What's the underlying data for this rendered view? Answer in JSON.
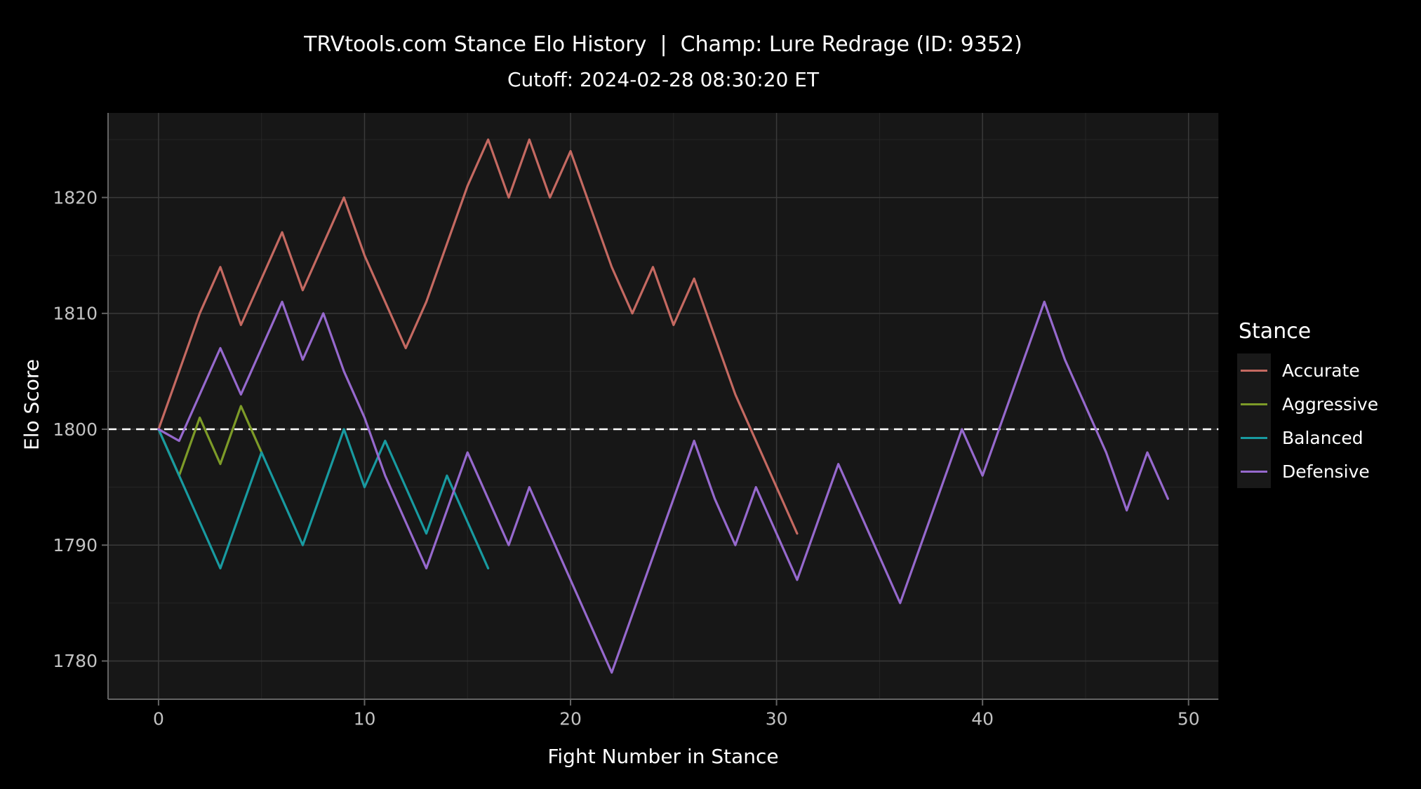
{
  "header": {
    "title": "TRVtools.com Stance Elo History  |  Champ: Lure Redrage (ID: 9352)",
    "subtitle": "Cutoff: 2024-02-28 08:30:20 ET"
  },
  "axes": {
    "x_label": "Fight Number in Stance",
    "y_label": "Elo Score"
  },
  "legend": {
    "title": "Stance",
    "entries": [
      {
        "label": "Accurate",
        "color": "#C46961"
      },
      {
        "label": "Aggressive",
        "color": "#7D9B28"
      },
      {
        "label": "Balanced",
        "color": "#189AA0"
      },
      {
        "label": "Defensive",
        "color": "#9669CD"
      }
    ]
  },
  "colors": {
    "background": "#000000",
    "panel": "#171717",
    "grid_major": "#3A3A3A",
    "grid_minor": "#262626",
    "axis_line": "#646464",
    "tick_label": "#C2C2C2",
    "text": "#FFFFFF",
    "reference_line": "#FFFFFF",
    "legend_key_bg": "#191919"
  },
  "chart_data": {
    "type": "line",
    "title": "TRVtools.com Stance Elo History | Champ: Lure Redrage (ID: 9352)",
    "subtitle": "Cutoff: 2024-02-28 08:30:20 ET",
    "xlabel": "Fight Number in Stance",
    "ylabel": "Elo Score",
    "xlim": [
      -2.45,
      51.45
    ],
    "ylim": [
      1776.7,
      1827.3
    ],
    "x_ticks": [
      0,
      10,
      20,
      30,
      40,
      50
    ],
    "x_minor_ticks": [
      5,
      15,
      25,
      35,
      45
    ],
    "y_ticks": [
      1780,
      1790,
      1800,
      1810,
      1820
    ],
    "y_minor_ticks": [
      1785,
      1795,
      1805,
      1815,
      1825
    ],
    "reference_line_y": 1800,
    "grid": true,
    "legend_position": "right",
    "legend_title": "Stance",
    "series": [
      {
        "name": "Accurate",
        "color": "#C46961",
        "x_start": 0,
        "values": [
          1800,
          1805,
          1810,
          1814,
          1809,
          1813,
          1817,
          1812,
          1816,
          1820,
          1815,
          1811,
          1807,
          1811,
          1816,
          1821,
          1825,
          1820,
          1825,
          1820,
          1824,
          1819,
          1814,
          1810,
          1814,
          1809,
          1813,
          1808,
          1803,
          1799,
          1795,
          1791
        ]
      },
      {
        "name": "Aggressive",
        "color": "#7D9B28",
        "x_start": 0,
        "values": [
          1800,
          1796,
          1801,
          1797,
          1802,
          1798
        ]
      },
      {
        "name": "Balanced",
        "color": "#189AA0",
        "x_start": 0,
        "values": [
          1800,
          1796,
          1792,
          1788,
          1793,
          1798,
          1794,
          1790,
          1795,
          1800,
          1795,
          1799,
          1795,
          1791,
          1796,
          1792,
          1788
        ]
      },
      {
        "name": "Defensive",
        "color": "#9669CD",
        "x_start": 0,
        "values": [
          1800,
          1799,
          1803,
          1807,
          1803,
          1807,
          1811,
          1806,
          1810,
          1805,
          1801,
          1796,
          1792,
          1788,
          1793,
          1798,
          1794,
          1790,
          1795,
          1791,
          1787,
          1783,
          1779,
          1784,
          1789,
          1794,
          1799,
          1794,
          1790,
          1795,
          1791,
          1787,
          1792,
          1797,
          1793,
          1789,
          1785,
          1790,
          1795,
          1800,
          1796,
          1801,
          1806,
          1811,
          1806,
          1802,
          1798,
          1793,
          1798,
          1794
        ]
      }
    ]
  }
}
